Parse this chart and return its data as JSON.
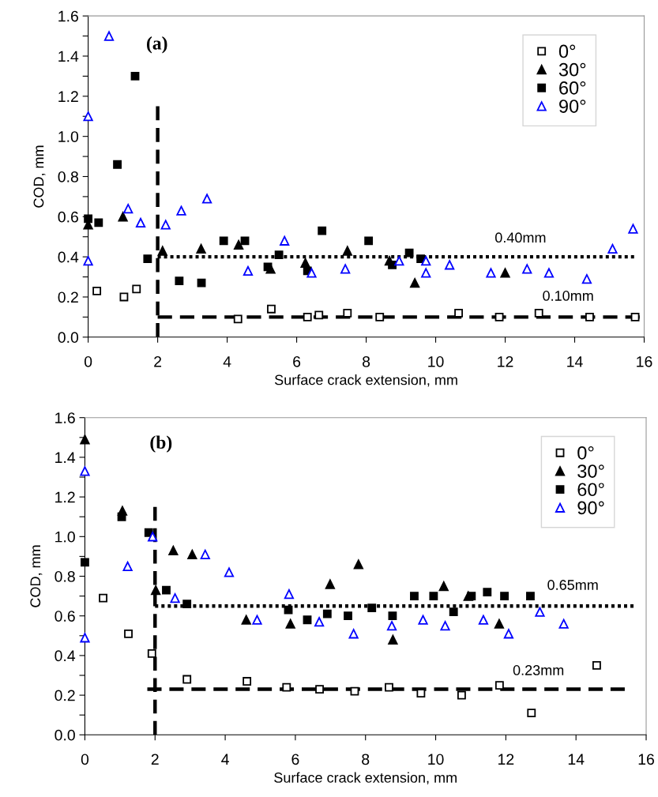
{
  "chart_data": [
    {
      "type": "scatter",
      "xlabel": "Surface crack extension, mm",
      "ylabel": "COD, mm",
      "xlim": [
        0,
        16
      ],
      "ylim": [
        0,
        1.6
      ],
      "xticks": [
        0,
        2,
        4,
        6,
        8,
        10,
        12,
        14,
        16
      ],
      "yticks": [
        {
          "value": 0,
          "label": "0.0"
        },
        {
          "value": 0.1,
          "label": null
        },
        {
          "value": 0.2,
          "label": "0.2"
        },
        {
          "value": 0.3,
          "label": null
        },
        {
          "value": 0.4,
          "label": "0.4"
        },
        {
          "value": 0.5,
          "label": null
        },
        {
          "value": 0.6,
          "label": "0.6"
        },
        {
          "value": 0.7,
          "label": null
        },
        {
          "value": 0.8,
          "label": "0.8"
        },
        {
          "value": 0.9,
          "label": null
        },
        {
          "value": 1.0,
          "label": "1.0"
        },
        {
          "value": 1.1,
          "label": null
        },
        {
          "value": 1.2,
          "label": "1.2"
        },
        {
          "value": 1.3,
          "label": null
        },
        {
          "value": 1.4,
          "label": "1.4"
        },
        {
          "value": 1.5,
          "label": null
        },
        {
          "value": 1.6,
          "label": "1.6"
        }
      ],
      "grid": false,
      "legend": "top right",
      "annotations": [
        "(a)",
        "0.40mm",
        "0.10mm"
      ],
      "series": [
        {
          "name": "0°",
          "color": "#000000",
          "marker": "square-open",
          "x": [
            0.25,
            1.03,
            1.39,
            4.31,
            5.27,
            6.31,
            6.64,
            7.46,
            8.39,
            10.66,
            11.83,
            12.97,
            14.43,
            15.74
          ],
          "values": [
            0.23,
            0.2,
            0.24,
            0.09,
            0.14,
            0.1,
            0.11,
            0.12,
            0.1,
            0.12,
            0.1,
            0.12,
            0.1,
            0.1
          ]
        },
        {
          "name": "30°",
          "color": "#000000",
          "marker": "triangle",
          "x": [
            0,
            1.0,
            2.14,
            3.25,
            4.33,
            5.25,
            6.25,
            7.46,
            8.67,
            9.4,
            12.0
          ],
          "values": [
            0.56,
            0.6,
            0.43,
            0.44,
            0.46,
            0.34,
            0.37,
            0.43,
            0.38,
            0.27,
            0.32
          ]
        },
        {
          "name": "60°",
          "color": "#000000",
          "marker": "square",
          "x": [
            0,
            0.3,
            0.84,
            1.35,
            1.71,
            2.62,
            3.26,
            3.9,
            4.51,
            5.17,
            5.49,
            6.31,
            6.73,
            8.07,
            8.75,
            9.24,
            9.57
          ],
          "values": [
            0.59,
            0.57,
            0.86,
            1.3,
            0.39,
            0.28,
            0.27,
            0.48,
            0.48,
            0.35,
            0.41,
            0.33,
            0.53,
            0.48,
            0.36,
            0.42,
            0.39
          ]
        },
        {
          "name": "90°",
          "color": "#0000ff",
          "marker": "triangle-open",
          "x": [
            0,
            0,
            0.6,
            1.15,
            1.51,
            2.23,
            2.68,
            3.42,
            4.6,
            5.65,
            6.43,
            7.4,
            8.95,
            9.72,
            9.72,
            10.4,
            11.59,
            12.63,
            13.26,
            14.35,
            15.09,
            15.68
          ],
          "values": [
            1.1,
            0.38,
            1.5,
            0.64,
            0.57,
            0.56,
            0.63,
            0.69,
            0.33,
            0.48,
            0.32,
            0.34,
            0.38,
            0.38,
            0.32,
            0.36,
            0.32,
            0.34,
            0.32,
            0.29,
            0.44,
            0.54
          ]
        },
        {
          "type": "line",
          "color": "#000000",
          "line_style": "dotted",
          "marker": "none",
          "x": [
            2,
            15.71
          ],
          "values": [
            0.4,
            0.4
          ]
        },
        {
          "type": "line",
          "color": "#000000",
          "line_style": "dashed",
          "marker": "none",
          "x": [
            2,
            15.87
          ],
          "values": [
            0.1,
            0.1
          ]
        },
        {
          "type": "line",
          "color": "#000000",
          "line_style": "dashed",
          "marker": "none",
          "x": [
            2,
            2
          ],
          "values": [
            0,
            1.15
          ]
        }
      ]
    },
    {
      "type": "scatter",
      "xlabel": "Surface crack extension, mm",
      "ylabel": "COD, mm",
      "xlim": [
        0,
        16
      ],
      "ylim": [
        0,
        1.6
      ],
      "xticks": [
        0,
        2,
        4,
        6,
        8,
        10,
        12,
        14,
        16
      ],
      "yticks": [
        {
          "value": 0,
          "label": "0.0"
        },
        {
          "value": 0.1,
          "label": null
        },
        {
          "value": 0.2,
          "label": "0.2"
        },
        {
          "value": 0.3,
          "label": null
        },
        {
          "value": 0.4,
          "label": "0.4"
        },
        {
          "value": 0.5,
          "label": null
        },
        {
          "value": 0.6,
          "label": "0.6"
        },
        {
          "value": 0.7,
          "label": null
        },
        {
          "value": 0.8,
          "label": "0.8"
        },
        {
          "value": 0.9,
          "label": null
        },
        {
          "value": 1.0,
          "label": "1.0"
        },
        {
          "value": 1.1,
          "label": null
        },
        {
          "value": 1.2,
          "label": "1.2"
        },
        {
          "value": 1.3,
          "label": null
        },
        {
          "value": 1.4,
          "label": "1.4"
        },
        {
          "value": 1.5,
          "label": null
        },
        {
          "value": 1.6,
          "label": "1.6"
        }
      ],
      "grid": false,
      "legend": "top right",
      "annotations": [
        "(b)",
        "0.65mm",
        "0.23mm"
      ],
      "series": [
        {
          "name": "0°",
          "color": "#000000",
          "marker": "square-open",
          "x": [
            0.52,
            1.24,
            1.91,
            2.91,
            4.62,
            5.75,
            6.69,
            7.69,
            8.67,
            9.58,
            10.74,
            11.82,
            12.73,
            14.59
          ],
          "values": [
            0.69,
            0.51,
            0.41,
            0.28,
            0.27,
            0.24,
            0.23,
            0.22,
            0.24,
            0.21,
            0.2,
            0.25,
            0.11,
            0.35
          ]
        },
        {
          "name": "30°",
          "color": "#000000",
          "marker": "triangle",
          "x": [
            0,
            1.07,
            2.02,
            2.52,
            3.06,
            4.6,
            5.86,
            6.99,
            7.8,
            8.78,
            10.23,
            10.93,
            11.81
          ],
          "values": [
            1.49,
            1.13,
            0.73,
            0.93,
            0.91,
            0.58,
            0.56,
            0.76,
            0.86,
            0.48,
            0.75,
            0.7,
            0.56
          ]
        },
        {
          "name": "60°",
          "color": "#000000",
          "marker": "square",
          "x": [
            0,
            1.05,
            1.82,
            2.32,
            2.91,
            5.8,
            6.34,
            6.91,
            7.5,
            8.18,
            8.77,
            9.39,
            9.94,
            10.51,
            11.02,
            11.47,
            11.96,
            12.7
          ],
          "values": [
            0.87,
            1.1,
            1.02,
            0.73,
            0.66,
            0.63,
            0.58,
            0.61,
            0.6,
            0.64,
            0.6,
            0.7,
            0.7,
            0.62,
            0.7,
            0.72,
            0.7,
            0.7
          ]
        },
        {
          "name": "90°",
          "color": "#0000ff",
          "marker": "triangle-open",
          "x": [
            0,
            0,
            1.22,
            1.93,
            2.57,
            3.43,
            4.11,
            4.91,
            5.82,
            6.68,
            7.66,
            8.75,
            9.64,
            10.27,
            11.36,
            12.08,
            12.97,
            13.65
          ],
          "values": [
            1.33,
            0.49,
            0.85,
            1.0,
            0.69,
            0.91,
            0.82,
            0.58,
            0.71,
            0.57,
            0.51,
            0.55,
            0.58,
            0.55,
            0.58,
            0.51,
            0.62,
            0.56
          ]
        },
        {
          "type": "line",
          "color": "#000000",
          "line_style": "dotted",
          "marker": "none",
          "x": [
            2,
            15.64
          ],
          "values": [
            0.65,
            0.65
          ]
        },
        {
          "type": "line",
          "color": "#000000",
          "line_style": "dashed",
          "marker": "none",
          "x": [
            1.78,
            15.39
          ],
          "values": [
            0.23,
            0.23
          ]
        },
        {
          "type": "line",
          "color": "#000000",
          "line_style": "dashed",
          "marker": "none",
          "x": [
            2,
            2
          ],
          "values": [
            0,
            1.15
          ]
        }
      ]
    }
  ]
}
